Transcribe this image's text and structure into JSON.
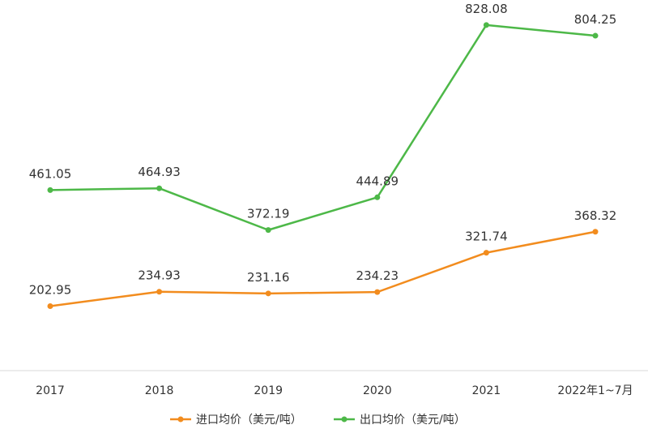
{
  "chart_data": {
    "type": "line",
    "title": "",
    "xlabel": "",
    "ylabel": "",
    "categories": [
      "2017",
      "2018",
      "2019",
      "2020",
      "2021",
      "2022年1~7月"
    ],
    "ylim": [
      0,
      900
    ],
    "grid": false,
    "legend_position": "bottom",
    "series": [
      {
        "name": "进口均价（美元/吨）",
        "color": "#F28C1E",
        "values": [
          202.95,
          234.93,
          231.16,
          234.23,
          321.74,
          368.32
        ],
        "labels": [
          "202.95",
          "234.93",
          "231.16",
          "234.23",
          "321.74",
          "368.32"
        ]
      },
      {
        "name": "出口均价（美元/吨）",
        "color": "#4DB848",
        "values": [
          461.05,
          464.93,
          372.19,
          444.89,
          828.08,
          804.25
        ],
        "labels": [
          "461.05",
          "464.93",
          "372.19",
          "444.89",
          "828.08",
          "804.25"
        ]
      }
    ]
  }
}
